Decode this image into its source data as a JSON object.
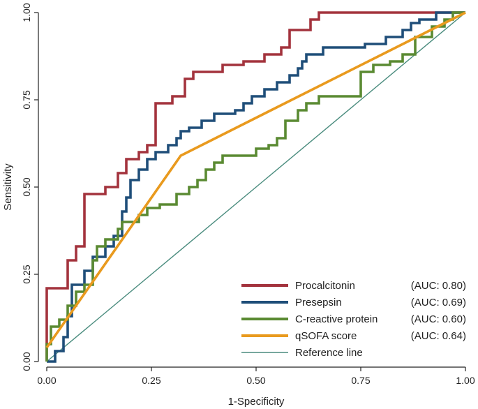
{
  "chart_data": {
    "type": "line",
    "title": "",
    "xlabel": "1-Specificity",
    "ylabel": "Sensitivity",
    "xlim": [
      0,
      1
    ],
    "ylim": [
      0,
      1
    ],
    "x_ticks": [
      0,
      0.25,
      0.5,
      0.75,
      1
    ],
    "x_tick_labels": [
      "0.00",
      "0.25",
      "0.50",
      "0.75",
      "1.00"
    ],
    "y_ticks": [
      0,
      0.25,
      0.5,
      0.75,
      1
    ],
    "y_tick_labels": [
      "0.00",
      "0.25",
      "0.50",
      "0.75",
      "1.00"
    ],
    "grid": false,
    "legend_position": "bottom-right",
    "series": [
      {
        "name": "Procalcitonin",
        "auc_label": "(AUC: 0.80)",
        "color": "#A3333D",
        "points": [
          [
            0,
            0
          ],
          [
            0,
            0.21
          ],
          [
            0.05,
            0.21
          ],
          [
            0.05,
            0.29
          ],
          [
            0.07,
            0.29
          ],
          [
            0.07,
            0.33
          ],
          [
            0.09,
            0.33
          ],
          [
            0.09,
            0.48
          ],
          [
            0.14,
            0.48
          ],
          [
            0.14,
            0.5
          ],
          [
            0.17,
            0.5
          ],
          [
            0.17,
            0.54
          ],
          [
            0.19,
            0.54
          ],
          [
            0.19,
            0.58
          ],
          [
            0.22,
            0.58
          ],
          [
            0.22,
            0.6
          ],
          [
            0.24,
            0.6
          ],
          [
            0.24,
            0.62
          ],
          [
            0.26,
            0.62
          ],
          [
            0.26,
            0.74
          ],
          [
            0.3,
            0.74
          ],
          [
            0.3,
            0.76
          ],
          [
            0.33,
            0.76
          ],
          [
            0.33,
            0.81
          ],
          [
            0.35,
            0.81
          ],
          [
            0.35,
            0.83
          ],
          [
            0.42,
            0.83
          ],
          [
            0.42,
            0.85
          ],
          [
            0.47,
            0.85
          ],
          [
            0.47,
            0.86
          ],
          [
            0.52,
            0.86
          ],
          [
            0.52,
            0.88
          ],
          [
            0.56,
            0.88
          ],
          [
            0.56,
            0.9
          ],
          [
            0.58,
            0.9
          ],
          [
            0.58,
            0.95
          ],
          [
            0.63,
            0.95
          ],
          [
            0.63,
            0.98
          ],
          [
            0.65,
            0.98
          ],
          [
            0.65,
            1.0
          ],
          [
            1.0,
            1.0
          ]
        ]
      },
      {
        "name": "Presepsin",
        "auc_label": "(AUC: 0.69)",
        "color": "#1F4E79",
        "points": [
          [
            0,
            0
          ],
          [
            0.02,
            0
          ],
          [
            0.02,
            0.03
          ],
          [
            0.04,
            0.03
          ],
          [
            0.04,
            0.07
          ],
          [
            0.05,
            0.07
          ],
          [
            0.05,
            0.13
          ],
          [
            0.06,
            0.13
          ],
          [
            0.06,
            0.22
          ],
          [
            0.09,
            0.22
          ],
          [
            0.09,
            0.26
          ],
          [
            0.11,
            0.26
          ],
          [
            0.11,
            0.3
          ],
          [
            0.14,
            0.3
          ],
          [
            0.14,
            0.33
          ],
          [
            0.16,
            0.33
          ],
          [
            0.16,
            0.36
          ],
          [
            0.18,
            0.36
          ],
          [
            0.18,
            0.43
          ],
          [
            0.19,
            0.43
          ],
          [
            0.19,
            0.47
          ],
          [
            0.2,
            0.47
          ],
          [
            0.2,
            0.52
          ],
          [
            0.22,
            0.52
          ],
          [
            0.22,
            0.55
          ],
          [
            0.24,
            0.55
          ],
          [
            0.24,
            0.58
          ],
          [
            0.26,
            0.58
          ],
          [
            0.26,
            0.6
          ],
          [
            0.29,
            0.6
          ],
          [
            0.29,
            0.62
          ],
          [
            0.31,
            0.62
          ],
          [
            0.31,
            0.64
          ],
          [
            0.32,
            0.64
          ],
          [
            0.32,
            0.66
          ],
          [
            0.34,
            0.66
          ],
          [
            0.34,
            0.67
          ],
          [
            0.37,
            0.67
          ],
          [
            0.37,
            0.69
          ],
          [
            0.4,
            0.69
          ],
          [
            0.4,
            0.71
          ],
          [
            0.45,
            0.71
          ],
          [
            0.45,
            0.72
          ],
          [
            0.47,
            0.72
          ],
          [
            0.47,
            0.74
          ],
          [
            0.49,
            0.74
          ],
          [
            0.49,
            0.76
          ],
          [
            0.52,
            0.76
          ],
          [
            0.52,
            0.78
          ],
          [
            0.55,
            0.78
          ],
          [
            0.55,
            0.8
          ],
          [
            0.58,
            0.8
          ],
          [
            0.58,
            0.82
          ],
          [
            0.6,
            0.82
          ],
          [
            0.6,
            0.84
          ],
          [
            0.61,
            0.84
          ],
          [
            0.61,
            0.86
          ],
          [
            0.62,
            0.86
          ],
          [
            0.62,
            0.88
          ],
          [
            0.66,
            0.88
          ],
          [
            0.66,
            0.9
          ],
          [
            0.76,
            0.9
          ],
          [
            0.76,
            0.91
          ],
          [
            0.81,
            0.91
          ],
          [
            0.81,
            0.93
          ],
          [
            0.85,
            0.93
          ],
          [
            0.85,
            0.95
          ],
          [
            0.87,
            0.95
          ],
          [
            0.87,
            0.97
          ],
          [
            0.89,
            0.97
          ],
          [
            0.89,
            0.98
          ],
          [
            0.93,
            0.98
          ],
          [
            0.93,
            1.0
          ],
          [
            1.0,
            1.0
          ]
        ]
      },
      {
        "name": "C-reactive protein",
        "auc_label": "(AUC: 0.60)",
        "color": "#5A8A32",
        "points": [
          [
            0,
            0
          ],
          [
            0,
            0.05
          ],
          [
            0.01,
            0.05
          ],
          [
            0.01,
            0.1
          ],
          [
            0.03,
            0.1
          ],
          [
            0.03,
            0.12
          ],
          [
            0.05,
            0.12
          ],
          [
            0.05,
            0.16
          ],
          [
            0.07,
            0.16
          ],
          [
            0.07,
            0.2
          ],
          [
            0.09,
            0.2
          ],
          [
            0.09,
            0.22
          ],
          [
            0.11,
            0.22
          ],
          [
            0.11,
            0.29
          ],
          [
            0.12,
            0.29
          ],
          [
            0.12,
            0.33
          ],
          [
            0.14,
            0.33
          ],
          [
            0.14,
            0.35
          ],
          [
            0.17,
            0.35
          ],
          [
            0.17,
            0.38
          ],
          [
            0.18,
            0.38
          ],
          [
            0.18,
            0.4
          ],
          [
            0.22,
            0.4
          ],
          [
            0.22,
            0.42
          ],
          [
            0.24,
            0.42
          ],
          [
            0.24,
            0.44
          ],
          [
            0.27,
            0.44
          ],
          [
            0.27,
            0.45
          ],
          [
            0.31,
            0.45
          ],
          [
            0.31,
            0.48
          ],
          [
            0.34,
            0.48
          ],
          [
            0.34,
            0.5
          ],
          [
            0.36,
            0.5
          ],
          [
            0.36,
            0.52
          ],
          [
            0.38,
            0.52
          ],
          [
            0.38,
            0.55
          ],
          [
            0.4,
            0.55
          ],
          [
            0.4,
            0.57
          ],
          [
            0.42,
            0.57
          ],
          [
            0.42,
            0.59
          ],
          [
            0.5,
            0.59
          ],
          [
            0.5,
            0.61
          ],
          [
            0.53,
            0.61
          ],
          [
            0.53,
            0.62
          ],
          [
            0.55,
            0.62
          ],
          [
            0.55,
            0.64
          ],
          [
            0.57,
            0.64
          ],
          [
            0.57,
            0.69
          ],
          [
            0.6,
            0.69
          ],
          [
            0.6,
            0.72
          ],
          [
            0.62,
            0.72
          ],
          [
            0.62,
            0.74
          ],
          [
            0.65,
            0.74
          ],
          [
            0.65,
            0.76
          ],
          [
            0.75,
            0.76
          ],
          [
            0.75,
            0.83
          ],
          [
            0.78,
            0.83
          ],
          [
            0.78,
            0.85
          ],
          [
            0.82,
            0.85
          ],
          [
            0.82,
            0.86
          ],
          [
            0.85,
            0.86
          ],
          [
            0.85,
            0.88
          ],
          [
            0.88,
            0.88
          ],
          [
            0.88,
            0.93
          ],
          [
            0.92,
            0.93
          ],
          [
            0.92,
            0.96
          ],
          [
            0.95,
            0.96
          ],
          [
            0.95,
            0.98
          ],
          [
            0.97,
            0.98
          ],
          [
            0.97,
            1.0
          ],
          [
            1.0,
            1.0
          ]
        ]
      },
      {
        "name": "qSOFA score",
        "auc_label": "(AUC: 0.64)",
        "color": "#E99A1E",
        "points": [
          [
            0,
            0.04
          ],
          [
            0.32,
            0.59
          ],
          [
            1.0,
            1.0
          ]
        ]
      },
      {
        "name": "Reference line",
        "auc_label": "",
        "color": "#4A8C7E",
        "points": [
          [
            0,
            0
          ],
          [
            1,
            1
          ]
        ]
      }
    ]
  }
}
